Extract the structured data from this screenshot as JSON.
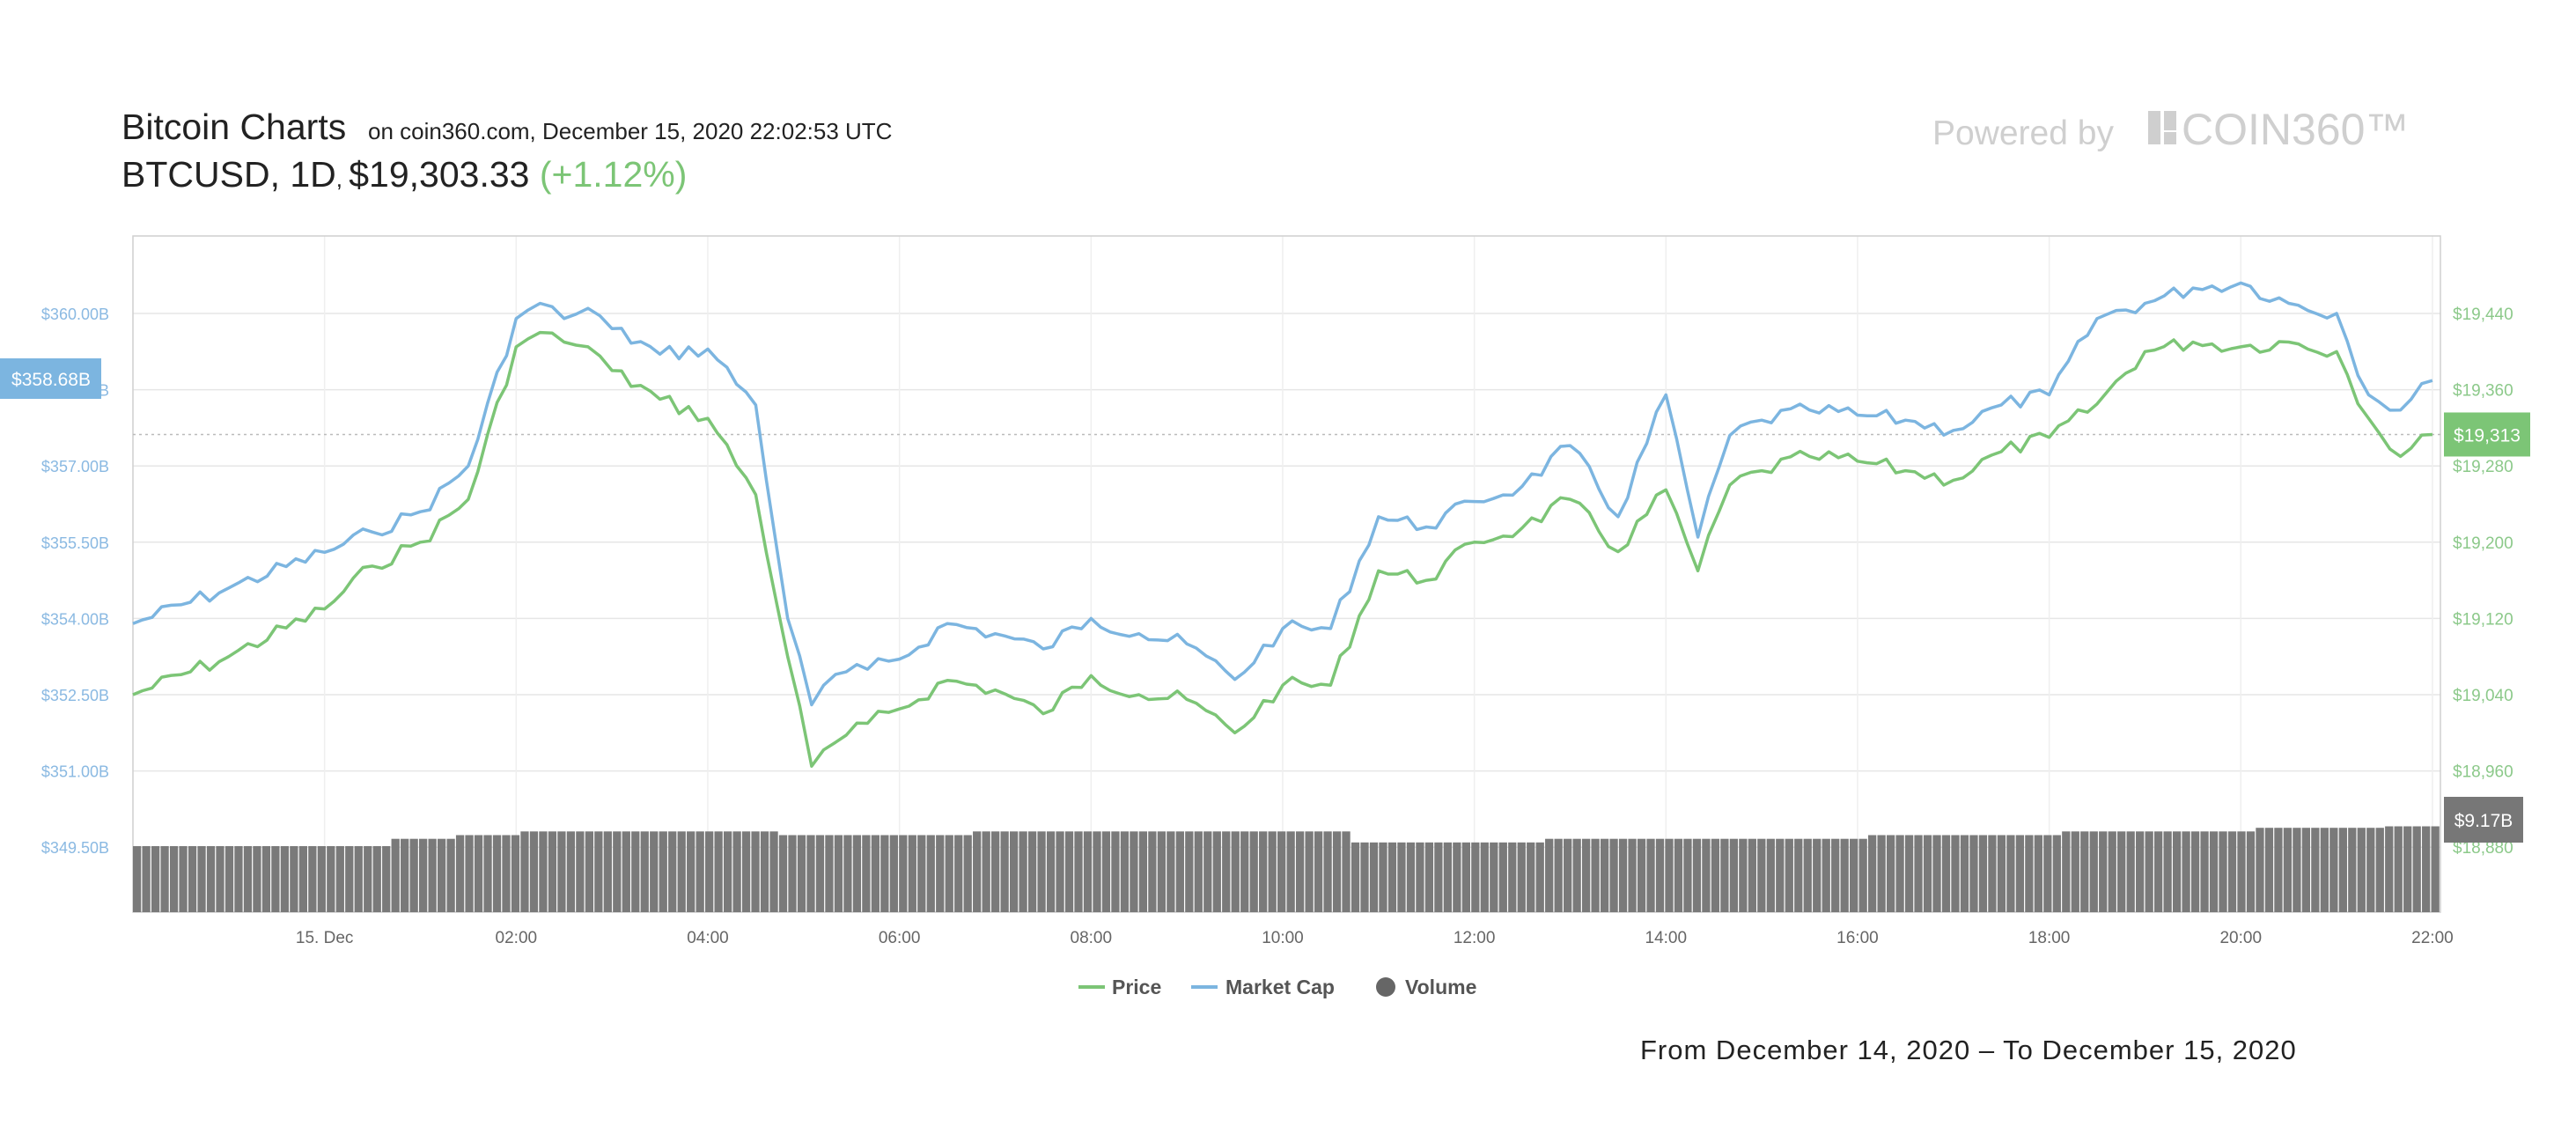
{
  "header": {
    "title": "Bitcoin Charts",
    "subtitle": "on coin360.com, December 15, 2020 22:02:53 UTC",
    "pair": "BTCUSD",
    "interval": "1D",
    "price": "$19,303.33",
    "change": "(+1.12%)",
    "powered_by": "Powered by",
    "brand": "COIN360™"
  },
  "footer": {
    "range": "From December 14, 2020 – To December 15, 2020"
  },
  "colors": {
    "price": "#7cc576",
    "market_cap": "#7cb5e0",
    "volume": "#7a7a7a",
    "price_axis": "#8cc98a",
    "cap_axis": "#8ab9e2"
  },
  "icons": {
    "brand_logo": "coin360-logo-icon",
    "legend_price": "line-swatch-icon",
    "legend_cap": "line-swatch-icon",
    "legend_volume": "circle-swatch-icon"
  },
  "chart_data": {
    "type": "line",
    "x_range": [
      "2020-12-14 22:00",
      "2020-12-15 22:05"
    ],
    "x_ticks": [
      {
        "t": "2020-12-15 00:00",
        "label": "15. Dec"
      },
      {
        "t": "2020-12-15 02:00",
        "label": "02:00"
      },
      {
        "t": "2020-12-15 04:00",
        "label": "04:00"
      },
      {
        "t": "2020-12-15 06:00",
        "label": "06:00"
      },
      {
        "t": "2020-12-15 08:00",
        "label": "08:00"
      },
      {
        "t": "2020-12-15 10:00",
        "label": "10:00"
      },
      {
        "t": "2020-12-15 12:00",
        "label": "12:00"
      },
      {
        "t": "2020-12-15 14:00",
        "label": "14:00"
      },
      {
        "t": "2020-12-15 16:00",
        "label": "16:00"
      },
      {
        "t": "2020-12-15 18:00",
        "label": "18:00"
      },
      {
        "t": "2020-12-15 20:00",
        "label": "20:00"
      },
      {
        "t": "2020-12-15 22:00",
        "label": "22:00"
      }
    ],
    "left_axis": {
      "ticks": [
        "$360.00B",
        "$358.50B",
        "$357.00B",
        "$355.50B",
        "$354.00B",
        "$352.50B",
        "$351.00B",
        "$349.50B"
      ],
      "ylim": [
        349.5,
        360.0
      ],
      "current_label": "$358.68B"
    },
    "right_axis": {
      "ticks": [
        "$19,440",
        "$19,360",
        "$19,280",
        "$19,200",
        "$19,120",
        "$19,040",
        "$18,960",
        "$18,880"
      ],
      "ylim": [
        18880,
        19440
      ],
      "current_label": "$19,313",
      "current_value": 19313
    },
    "volume_label": "$9.17B",
    "legend": [
      {
        "key": "price",
        "label": "Price"
      },
      {
        "key": "market_cap",
        "label": "Market Cap"
      },
      {
        "key": "volume",
        "label": "Volume"
      }
    ],
    "series": [
      {
        "name": "Price",
        "axis": "right",
        "x": [
          "2020-12-14 22:00",
          "2020-12-14 23:00",
          "2020-12-15 00:00",
          "2020-12-15 00:30",
          "2020-12-15 01:00",
          "2020-12-15 01:30",
          "2020-12-15 02:00",
          "2020-12-15 02:15",
          "2020-12-15 02:30",
          "2020-12-15 02:45",
          "2020-12-15 03:00",
          "2020-12-15 03:30",
          "2020-12-15 04:00",
          "2020-12-15 04:30",
          "2020-12-15 04:50",
          "2020-12-15 05:05",
          "2020-12-15 05:20",
          "2020-12-15 05:40",
          "2020-12-15 06:00",
          "2020-12-15 06:30",
          "2020-12-15 07:00",
          "2020-12-15 07:30",
          "2020-12-15 08:00",
          "2020-12-15 08:30",
          "2020-12-15 09:00",
          "2020-12-15 09:30",
          "2020-12-15 10:00",
          "2020-12-15 10:30",
          "2020-12-15 11:00",
          "2020-12-15 11:30",
          "2020-12-15 12:00",
          "2020-12-15 12:30",
          "2020-12-15 13:00",
          "2020-12-15 13:30",
          "2020-12-15 14:00",
          "2020-12-15 14:20",
          "2020-12-15 14:40",
          "2020-12-15 15:00",
          "2020-12-15 15:30",
          "2020-12-15 16:00",
          "2020-12-15 16:30",
          "2020-12-15 17:00",
          "2020-12-15 17:30",
          "2020-12-15 18:00",
          "2020-12-15 18:30",
          "2020-12-15 19:00",
          "2020-12-15 19:30",
          "2020-12-15 20:00",
          "2020-12-15 20:30",
          "2020-12-15 21:00",
          "2020-12-15 21:20",
          "2020-12-15 21:40",
          "2020-12-15 22:00"
        ],
        "values": [
          19040,
          19080,
          19130,
          19175,
          19200,
          19245,
          19405,
          19420,
          19410,
          19405,
          19380,
          19350,
          19330,
          19250,
          19080,
          18965,
          18990,
          19010,
          19025,
          19055,
          19045,
          19020,
          19060,
          19040,
          19035,
          19000,
          19050,
          19050,
          19170,
          19160,
          19200,
          19215,
          19245,
          19190,
          19255,
          19170,
          19260,
          19275,
          19290,
          19285,
          19275,
          19265,
          19295,
          19310,
          19345,
          19400,
          19410,
          19405,
          19410,
          19400,
          19330,
          19290,
          19313
        ]
      },
      {
        "name": "Market Cap",
        "axis": "left",
        "x": [
          "2020-12-14 22:00",
          "2020-12-14 23:00",
          "2020-12-15 00:00",
          "2020-12-15 00:30",
          "2020-12-15 01:00",
          "2020-12-15 01:30",
          "2020-12-15 02:00",
          "2020-12-15 02:15",
          "2020-12-15 02:30",
          "2020-12-15 02:45",
          "2020-12-15 03:00",
          "2020-12-15 03:30",
          "2020-12-15 04:00",
          "2020-12-15 04:30",
          "2020-12-15 04:50",
          "2020-12-15 05:05",
          "2020-12-15 05:20",
          "2020-12-15 05:40",
          "2020-12-15 06:00",
          "2020-12-15 06:30",
          "2020-12-15 07:00",
          "2020-12-15 07:30",
          "2020-12-15 08:00",
          "2020-12-15 08:30",
          "2020-12-15 09:00",
          "2020-12-15 09:30",
          "2020-12-15 10:00",
          "2020-12-15 10:30",
          "2020-12-15 11:00",
          "2020-12-15 11:30",
          "2020-12-15 12:00",
          "2020-12-15 12:30",
          "2020-12-15 13:00",
          "2020-12-15 13:30",
          "2020-12-15 14:00",
          "2020-12-15 14:20",
          "2020-12-15 14:40",
          "2020-12-15 15:00",
          "2020-12-15 15:30",
          "2020-12-15 16:00",
          "2020-12-15 16:30",
          "2020-12-15 17:00",
          "2020-12-15 17:30",
          "2020-12-15 18:00",
          "2020-12-15 18:30",
          "2020-12-15 19:00",
          "2020-12-15 19:30",
          "2020-12-15 20:00",
          "2020-12-15 20:30",
          "2020-12-15 21:00",
          "2020-12-15 21:20",
          "2020-12-15 21:40",
          "2020-12-15 22:00"
        ],
        "values": [
          353.9,
          354.6,
          355.3,
          355.7,
          356.1,
          357.0,
          359.9,
          360.2,
          359.9,
          360.1,
          359.7,
          359.2,
          359.3,
          358.2,
          354.0,
          352.3,
          352.9,
          353.0,
          353.2,
          353.9,
          353.7,
          353.4,
          354.0,
          353.7,
          353.5,
          352.8,
          353.8,
          353.8,
          356.0,
          355.8,
          356.3,
          356.6,
          357.4,
          356.0,
          358.4,
          355.6,
          357.6,
          357.9,
          358.1,
          358.0,
          357.9,
          357.7,
          358.2,
          358.4,
          359.9,
          360.2,
          360.5,
          360.6,
          360.2,
          360.0,
          358.4,
          358.1,
          358.68
        ]
      }
    ],
    "volume": {
      "values_b": [
        8.9,
        8.9,
        8.9,
        8.9,
        9.0,
        9.05,
        9.1,
        9.1,
        9.1,
        9.1,
        9.05,
        9.05,
        9.05,
        9.1,
        9.1,
        9.1,
        9.1,
        9.1,
        9.1,
        8.95,
        8.95,
        8.95,
        9.0,
        9.0,
        9.0,
        9.0,
        9.0,
        9.05,
        9.05,
        9.05,
        9.1,
        9.1,
        9.1,
        9.15,
        9.15,
        9.17
      ],
      "x_start": "2020-12-14 22:00",
      "x_end": "2020-12-15 22:05"
    },
    "grid": true,
    "legend_position": "bottom-center"
  }
}
